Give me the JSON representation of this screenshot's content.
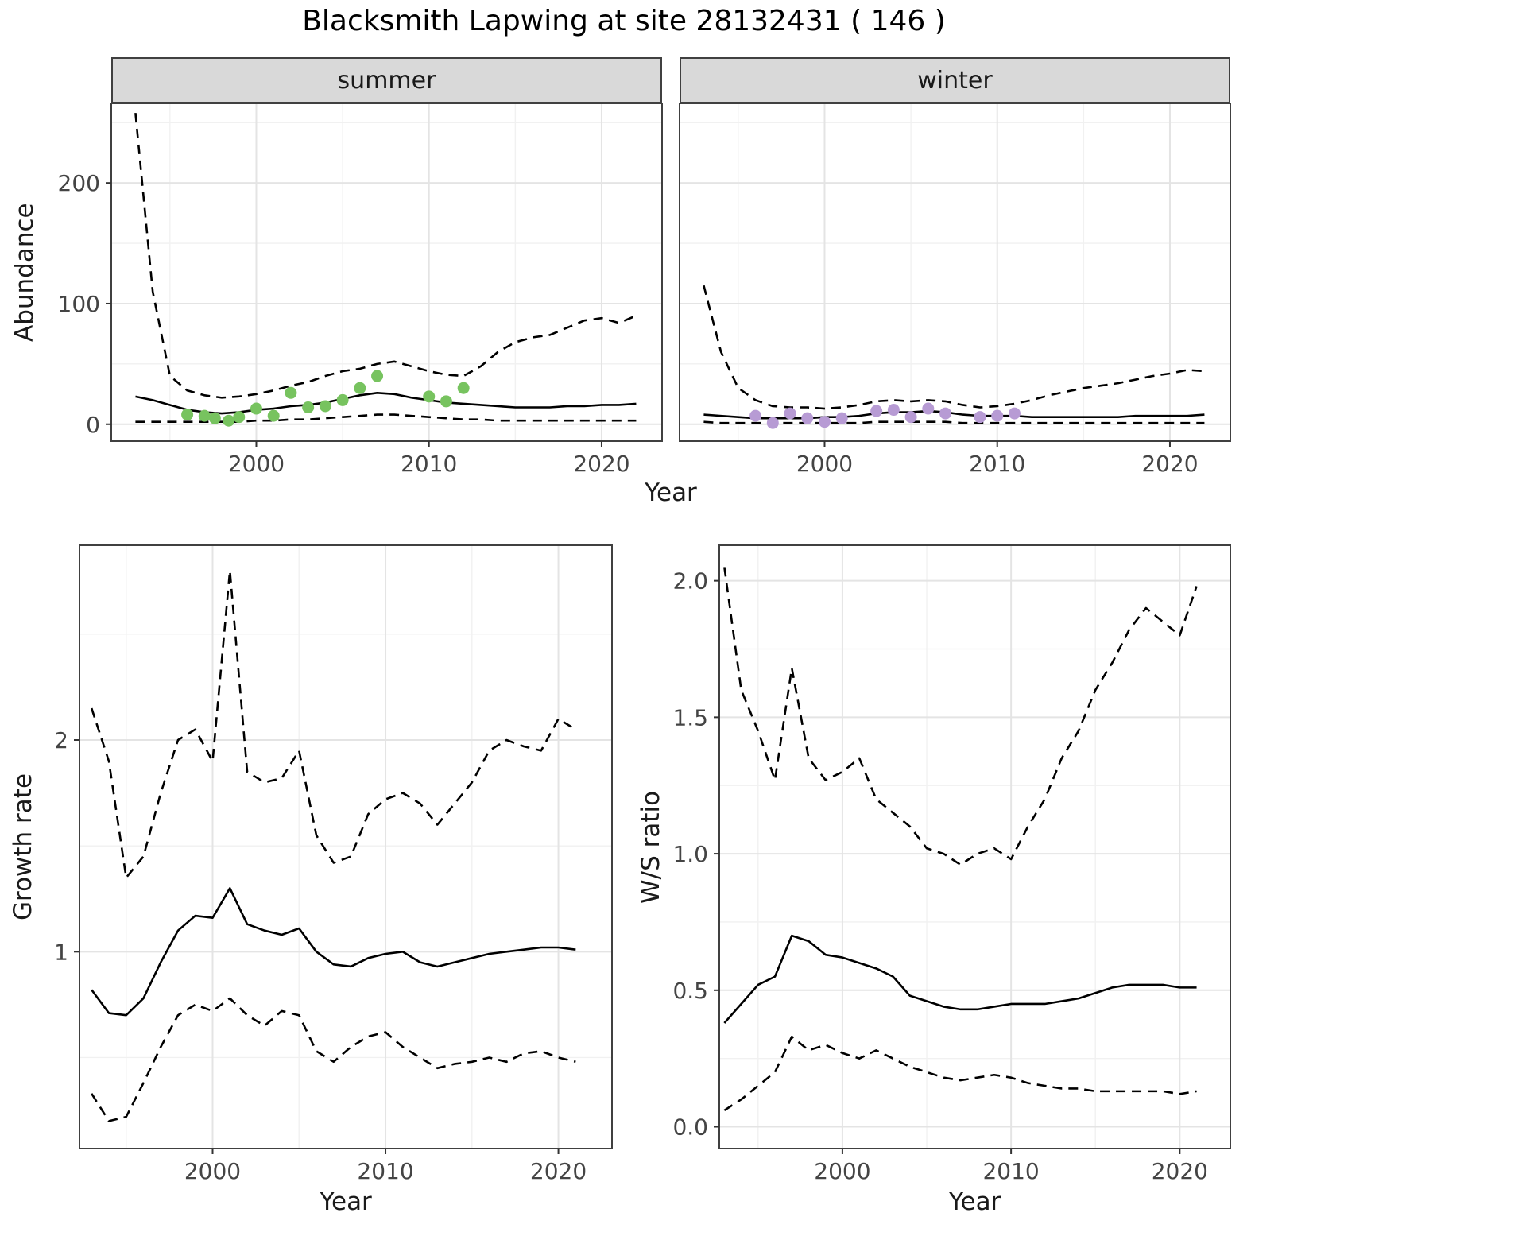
{
  "title": "Blacksmith Lapwing at site 28132431 ( 146 )",
  "top_row": {
    "xlabel": "Year",
    "ylabel": "Abundance"
  },
  "colors": {
    "line": "#000000",
    "summer_points": "#77C35F",
    "winter_points": "#B79BD4",
    "strip_bg": "#D9D9D9",
    "panel_border": "#404040",
    "grid_major": "#e4e4e4",
    "grid_minor": "#f1f1f1"
  },
  "chart_data": [
    {
      "id": "summer-abundance",
      "type": "line",
      "facet_label": "summer",
      "xlabel": "Year",
      "ylabel": "Abundance",
      "xlim": [
        1991.6,
        2023.5
      ],
      "ylim": [
        -14,
        266
      ],
      "x_ticks": [
        2000,
        2010,
        2020
      ],
      "x_tick_labels": [
        "2000",
        "2010",
        "2020"
      ],
      "x_minor": [
        1995,
        2005,
        2015
      ],
      "y_ticks": [
        0,
        100,
        200
      ],
      "y_tick_labels": [
        "0",
        "100",
        "200"
      ],
      "y_minor": [
        50,
        150,
        250
      ],
      "x": [
        1993,
        1994,
        1995,
        1996,
        1997,
        1998,
        1999,
        2000,
        2001,
        2002,
        2003,
        2004,
        2005,
        2006,
        2007,
        2008,
        2009,
        2010,
        2011,
        2012,
        2013,
        2014,
        2015,
        2016,
        2017,
        2018,
        2019,
        2020,
        2021,
        2022
      ],
      "series": [
        {
          "name": "upper-ci",
          "style": "dashed",
          "color": "#000000",
          "y": [
            258,
            110,
            40,
            28,
            24,
            22,
            23,
            25,
            28,
            32,
            35,
            40,
            44,
            46,
            50,
            52,
            48,
            44,
            41,
            40,
            48,
            60,
            68,
            72,
            74,
            80,
            86,
            88,
            84,
            90
          ]
        },
        {
          "name": "median",
          "style": "solid",
          "color": "#000000",
          "y": [
            23,
            20,
            16,
            12,
            10,
            9,
            10,
            12,
            13,
            15,
            16,
            18,
            21,
            24,
            26,
            25,
            22,
            20,
            18,
            17,
            16,
            15,
            14,
            14,
            14,
            15,
            15,
            16,
            16,
            17
          ]
        },
        {
          "name": "lower-ci",
          "style": "dashed",
          "color": "#000000",
          "y": [
            2,
            2,
            2,
            2,
            2,
            2,
            2,
            3,
            3,
            4,
            4,
            5,
            6,
            7,
            8,
            8,
            7,
            6,
            5,
            4,
            4,
            3,
            3,
            3,
            3,
            3,
            3,
            3,
            3,
            3
          ]
        },
        {
          "name": "observed-count",
          "style": "points",
          "color": "#77C35F",
          "x": [
            1996,
            1997,
            1997.6,
            1998.4,
            1999,
            2000,
            2001,
            2002,
            2003,
            2004,
            2005,
            2006,
            2007,
            2010,
            2011,
            2012
          ],
          "y": [
            8,
            7,
            5,
            3,
            6,
            13,
            7,
            26,
            14,
            15,
            20,
            30,
            40,
            23,
            19,
            30
          ]
        }
      ]
    },
    {
      "id": "winter-abundance",
      "type": "line",
      "facet_label": "winter",
      "xlabel": "Year",
      "ylabel": "Abundance",
      "xlim": [
        1991.6,
        2023.5
      ],
      "ylim": [
        -14,
        266
      ],
      "x_ticks": [
        2000,
        2010,
        2020
      ],
      "x_tick_labels": [
        "2000",
        "2010",
        "2020"
      ],
      "x_minor": [
        1995,
        2005,
        2015
      ],
      "y_ticks": [
        0,
        100,
        200
      ],
      "y_tick_labels": [
        "0",
        "100",
        "200"
      ],
      "y_minor": [
        50,
        150,
        250
      ],
      "x": [
        1993,
        1994,
        1995,
        1996,
        1997,
        1998,
        1999,
        2000,
        2001,
        2002,
        2003,
        2004,
        2005,
        2006,
        2007,
        2008,
        2009,
        2010,
        2011,
        2012,
        2013,
        2014,
        2015,
        2016,
        2017,
        2018,
        2019,
        2020,
        2021,
        2022
      ],
      "series": [
        {
          "name": "upper-ci",
          "style": "dashed",
          "color": "#000000",
          "y": [
            115,
            60,
            30,
            20,
            15,
            14,
            14,
            13,
            14,
            16,
            19,
            20,
            19,
            20,
            19,
            16,
            14,
            15,
            17,
            20,
            24,
            27,
            30,
            32,
            34,
            37,
            40,
            42,
            45,
            44
          ]
        },
        {
          "name": "median",
          "style": "solid",
          "color": "#000000",
          "y": [
            8,
            7,
            6,
            5,
            5,
            5,
            5,
            6,
            6,
            7,
            9,
            10,
            10,
            11,
            10,
            8,
            7,
            7,
            7,
            6,
            6,
            6,
            6,
            6,
            6,
            7,
            7,
            7,
            7,
            8
          ]
        },
        {
          "name": "lower-ci",
          "style": "dashed",
          "color": "#000000",
          "y": [
            2,
            1,
            1,
            1,
            1,
            1,
            1,
            1,
            1,
            1,
            2,
            2,
            2,
            2,
            2,
            1,
            1,
            1,
            1,
            1,
            1,
            1,
            1,
            1,
            1,
            1,
            1,
            1,
            1,
            1
          ]
        },
        {
          "name": "observed-count",
          "style": "points",
          "color": "#B79BD4",
          "x": [
            1996,
            1997,
            1998,
            1999,
            2000,
            2001,
            2003,
            2004,
            2005,
            2006,
            2007,
            2009,
            2010,
            2011
          ],
          "y": [
            7,
            1,
            9,
            5,
            2,
            5,
            11,
            12,
            6,
            13,
            9,
            6,
            7,
            9
          ]
        }
      ]
    },
    {
      "id": "growth-rate",
      "type": "line",
      "facet_label": "",
      "xlabel": "Year",
      "ylabel": "Growth rate",
      "xlim": [
        1992.3,
        2023.1
      ],
      "ylim": [
        0.07,
        2.92
      ],
      "x_ticks": [
        2000,
        2010,
        2020
      ],
      "x_tick_labels": [
        "2000",
        "2010",
        "2020"
      ],
      "x_minor": [
        1995,
        2005,
        2015
      ],
      "y_ticks": [
        1,
        2
      ],
      "y_tick_labels": [
        "1",
        "2"
      ],
      "y_minor": [
        0.5,
        1.5,
        2.5
      ],
      "x": [
        1993,
        1994,
        1995,
        1996,
        1997,
        1998,
        1999,
        2000,
        2001,
        2002,
        2003,
        2004,
        2005,
        2006,
        2007,
        2008,
        2009,
        2010,
        2011,
        2012,
        2013,
        2014,
        2015,
        2016,
        2017,
        2018,
        2019,
        2020,
        2021
      ],
      "series": [
        {
          "name": "upper-ci",
          "style": "dashed",
          "color": "#000000",
          "y": [
            2.15,
            1.9,
            1.35,
            1.45,
            1.75,
            2.0,
            2.05,
            1.9,
            2.8,
            1.85,
            1.8,
            1.82,
            1.95,
            1.55,
            1.42,
            1.45,
            1.65,
            1.72,
            1.75,
            1.7,
            1.6,
            1.7,
            1.8,
            1.95,
            2.0,
            1.97,
            1.95,
            2.1,
            2.05
          ]
        },
        {
          "name": "median",
          "style": "solid",
          "color": "#000000",
          "y": [
            0.82,
            0.71,
            0.7,
            0.78,
            0.95,
            1.1,
            1.17,
            1.16,
            1.3,
            1.13,
            1.1,
            1.08,
            1.11,
            1.0,
            0.94,
            0.93,
            0.97,
            0.99,
            1.0,
            0.95,
            0.93,
            0.95,
            0.97,
            0.99,
            1.0,
            1.01,
            1.02,
            1.02,
            1.01
          ]
        },
        {
          "name": "lower-ci",
          "style": "dashed",
          "color": "#000000",
          "y": [
            0.33,
            0.2,
            0.22,
            0.38,
            0.55,
            0.7,
            0.75,
            0.72,
            0.78,
            0.7,
            0.65,
            0.72,
            0.7,
            0.53,
            0.48,
            0.55,
            0.6,
            0.62,
            0.55,
            0.5,
            0.45,
            0.47,
            0.48,
            0.5,
            0.48,
            0.52,
            0.53,
            0.5,
            0.48
          ]
        }
      ]
    },
    {
      "id": "ws-ratio",
      "type": "line",
      "facet_label": "",
      "xlabel": "Year",
      "ylabel": "W/S ratio",
      "xlim": [
        1992.7,
        2023.0
      ],
      "ylim": [
        -0.08,
        2.13
      ],
      "x_ticks": [
        2000,
        2010,
        2020
      ],
      "x_tick_labels": [
        "2000",
        "2010",
        "2020"
      ],
      "x_minor": [
        1995,
        2005,
        2015
      ],
      "y_ticks": [
        0,
        0.5,
        1,
        1.5,
        2
      ],
      "y_tick_labels": [
        "0.0",
        "0.5",
        "1.0",
        "1.5",
        "2.0"
      ],
      "y_minor": [
        0.25,
        0.75,
        1.25,
        1.75
      ],
      "x": [
        1993,
        1994,
        1995,
        1996,
        1997,
        1998,
        1999,
        2000,
        2001,
        2002,
        2003,
        2004,
        2005,
        2006,
        2007,
        2008,
        2009,
        2010,
        2011,
        2012,
        2013,
        2014,
        2015,
        2016,
        2017,
        2018,
        2019,
        2020,
        2021
      ],
      "series": [
        {
          "name": "upper-ci",
          "style": "dashed",
          "color": "#000000",
          "y": [
            2.05,
            1.6,
            1.45,
            1.27,
            1.68,
            1.35,
            1.27,
            1.3,
            1.35,
            1.2,
            1.15,
            1.1,
            1.02,
            1.0,
            0.96,
            1.0,
            1.02,
            0.98,
            1.1,
            1.2,
            1.35,
            1.45,
            1.6,
            1.7,
            1.82,
            1.9,
            1.85,
            1.8,
            1.98
          ]
        },
        {
          "name": "median",
          "style": "solid",
          "color": "#000000",
          "y": [
            0.38,
            0.45,
            0.52,
            0.55,
            0.7,
            0.68,
            0.63,
            0.62,
            0.6,
            0.58,
            0.55,
            0.48,
            0.46,
            0.44,
            0.43,
            0.43,
            0.44,
            0.45,
            0.45,
            0.45,
            0.46,
            0.47,
            0.49,
            0.51,
            0.52,
            0.52,
            0.52,
            0.51,
            0.51
          ]
        },
        {
          "name": "lower-ci",
          "style": "dashed",
          "color": "#000000",
          "y": [
            0.06,
            0.1,
            0.15,
            0.2,
            0.33,
            0.28,
            0.3,
            0.27,
            0.25,
            0.28,
            0.25,
            0.22,
            0.2,
            0.18,
            0.17,
            0.18,
            0.19,
            0.18,
            0.16,
            0.15,
            0.14,
            0.14,
            0.13,
            0.13,
            0.13,
            0.13,
            0.13,
            0.12,
            0.13
          ]
        }
      ]
    }
  ]
}
